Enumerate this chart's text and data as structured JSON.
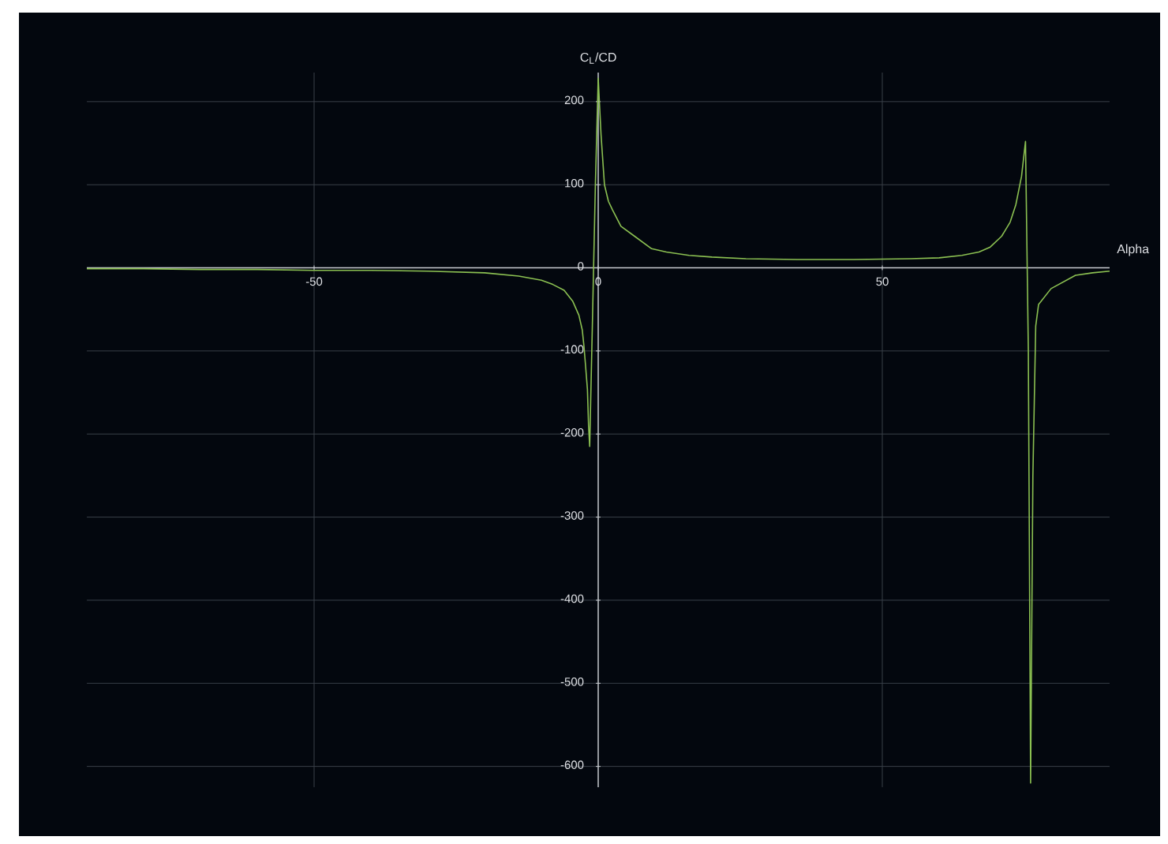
{
  "chart_data": {
    "type": "line",
    "xlabel": "Alpha",
    "ylabel": "C$_{L}$/CD",
    "x": [
      -90,
      -80,
      -70,
      -60,
      -50,
      -40,
      -30,
      -20,
      -14,
      -10,
      -8,
      -6,
      -4.5,
      -3.4,
      -2.8,
      -2.5,
      -2.2,
      -1.9,
      -1.7,
      -1.5,
      -1.0,
      -0.5,
      0,
      0.5,
      1.1,
      1.8,
      2.5,
      4,
      6.4,
      9.4,
      12,
      16,
      20,
      26,
      35,
      45,
      55,
      60,
      64,
      67,
      69,
      71,
      72.5,
      73.5,
      74.5,
      75.2,
      75.7,
      76.1,
      76.5,
      77,
      77.5,
      79.7,
      84,
      87,
      90
    ],
    "values": [
      -1,
      -1,
      -2,
      -2,
      -3,
      -3,
      -4,
      -6,
      -10,
      -15,
      -20,
      -27,
      -40,
      -57,
      -75,
      -95,
      -120,
      -146,
      -190,
      -215,
      -60,
      100,
      228,
      160,
      100,
      80,
      70,
      50,
      38,
      23,
      19,
      15,
      13,
      11,
      10,
      10,
      11,
      12,
      15,
      19,
      25,
      38,
      55,
      76,
      110,
      152,
      -100,
      -620,
      -250,
      -70,
      -44,
      -25,
      -9,
      -6,
      -4
    ],
    "color": "#8cc152",
    "xlim": [
      -90,
      90
    ],
    "ylim": [
      -625,
      235
    ],
    "xticks": [
      -50,
      0,
      50
    ],
    "yticks": [
      -600,
      -500,
      -400,
      -300,
      -200,
      -100,
      0,
      100,
      200
    ],
    "grid": true
  }
}
